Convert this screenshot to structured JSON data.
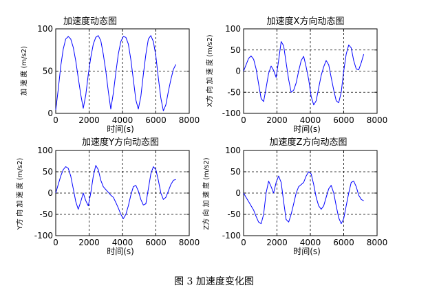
{
  "figure": {
    "caption": "图 3  加速度变化图"
  },
  "chart_data": [
    {
      "type": "line",
      "title": "加速度动态图",
      "xlabel": "时间(s)",
      "ylabel": "加 速 度  (m/s2)",
      "xlim": [
        0,
        8000
      ],
      "ylim": [
        0,
        100
      ],
      "xticks": [
        0,
        2000,
        4000,
        6000,
        8000
      ],
      "yticks": [
        0,
        50,
        100
      ],
      "grid": true,
      "color": "#0000ff",
      "series": [
        {
          "name": "加速度",
          "x": [
            0,
            150,
            300,
            450,
            600,
            750,
            900,
            1050,
            1200,
            1350,
            1500,
            1650,
            1800,
            1950,
            2100,
            2250,
            2400,
            2550,
            2700,
            2850,
            3000,
            3150,
            3300,
            3450,
            3600,
            3750,
            3900,
            4050,
            4200,
            4350,
            4500,
            4650,
            4800,
            4950,
            5100,
            5250,
            5400,
            5550,
            5700,
            5850,
            6000,
            6150,
            6300,
            6450,
            6600,
            6750,
            6900,
            7050,
            7200
          ],
          "y": [
            4,
            28,
            56,
            76,
            88,
            91,
            88,
            78,
            62,
            42,
            22,
            6,
            22,
            46,
            66,
            82,
            90,
            92,
            86,
            70,
            50,
            26,
            5,
            24,
            48,
            70,
            85,
            91,
            90,
            82,
            64,
            40,
            16,
            5,
            20,
            46,
            70,
            88,
            92,
            85,
            68,
            42,
            18,
            3,
            10,
            26,
            40,
            52,
            58
          ]
        }
      ]
    },
    {
      "type": "line",
      "title": "加速度X方向动态图",
      "xlabel": "时间(s)",
      "ylabel": "X方 向 加 速 度  (m/s2)",
      "xlim": [
        0,
        8000
      ],
      "ylim": [
        -100,
        100
      ],
      "xticks": [
        0,
        2000,
        4000,
        6000,
        8000
      ],
      "yticks": [
        -100,
        -50,
        0,
        50,
        100
      ],
      "grid": true,
      "color": "#0000ff",
      "series": [
        {
          "name": "X",
          "x": [
            0,
            150,
            300,
            450,
            600,
            750,
            900,
            1050,
            1200,
            1350,
            1500,
            1650,
            1800,
            1950,
            2100,
            2250,
            2400,
            2550,
            2700,
            2850,
            3000,
            3150,
            3300,
            3450,
            3600,
            3750,
            3900,
            4050,
            4200,
            4350,
            4500,
            4650,
            4800,
            4950,
            5100,
            5250,
            5400,
            5550,
            5700,
            5850,
            6000,
            6150,
            6300,
            6450,
            6600,
            6750,
            6900,
            7050,
            7200
          ],
          "y": [
            0,
            15,
            30,
            36,
            28,
            5,
            -30,
            -65,
            -72,
            -40,
            -5,
            12,
            2,
            -15,
            25,
            70,
            60,
            20,
            -20,
            -50,
            -45,
            -28,
            0,
            25,
            35,
            10,
            -20,
            -60,
            -80,
            -70,
            -40,
            -10,
            10,
            25,
            15,
            -15,
            -45,
            -70,
            -75,
            -50,
            0,
            40,
            62,
            55,
            25,
            5,
            3,
            20,
            40
          ]
        }
      ]
    },
    {
      "type": "line",
      "title": "加速度Y方向动态图",
      "xlabel": "时间(s)",
      "ylabel": "Y方 向 加 速 度  (m/s2)",
      "xlim": [
        0,
        8000
      ],
      "ylim": [
        -100,
        100
      ],
      "xticks": [
        0,
        2000,
        4000,
        6000,
        8000
      ],
      "yticks": [
        -100,
        -50,
        0,
        50,
        100
      ],
      "grid": true,
      "color": "#0000ff",
      "series": [
        {
          "name": "Y",
          "x": [
            0,
            150,
            300,
            450,
            600,
            750,
            900,
            1050,
            1200,
            1350,
            1500,
            1650,
            1800,
            1950,
            2100,
            2250,
            2400,
            2550,
            2700,
            2850,
            3000,
            3150,
            3300,
            3450,
            3600,
            3750,
            3900,
            4050,
            4200,
            4350,
            4500,
            4650,
            4800,
            4950,
            5100,
            5250,
            5400,
            5550,
            5700,
            5850,
            6000,
            6150,
            6300,
            6450,
            6600,
            6750,
            6900,
            7050,
            7200
          ],
          "y": [
            0,
            20,
            40,
            55,
            62,
            58,
            40,
            10,
            -20,
            -38,
            -20,
            0,
            -18,
            -30,
            0,
            40,
            65,
            55,
            30,
            15,
            8,
            2,
            -5,
            -10,
            -22,
            -35,
            -50,
            -60,
            -50,
            -30,
            -5,
            15,
            18,
            5,
            -15,
            -28,
            -25,
            10,
            45,
            62,
            55,
            30,
            0,
            -15,
            -10,
            5,
            20,
            30,
            32
          ]
        }
      ]
    },
    {
      "type": "line",
      "title": "加速度Z方向动态图",
      "xlabel": "时间(s)",
      "ylabel": "Z方 向 加 速 度  (m/s2)",
      "xlim": [
        0,
        8000
      ],
      "ylim": [
        -100,
        100
      ],
      "xticks": [
        0,
        2000,
        4000,
        6000,
        8000
      ],
      "yticks": [
        -100,
        -50,
        0,
        50,
        100
      ],
      "grid": true,
      "color": "#0000ff",
      "series": [
        {
          "name": "Z",
          "x": [
            0,
            150,
            300,
            450,
            600,
            750,
            900,
            1050,
            1200,
            1350,
            1500,
            1650,
            1800,
            1950,
            2100,
            2250,
            2400,
            2550,
            2700,
            2850,
            3000,
            3150,
            3300,
            3450,
            3600,
            3750,
            3900,
            4050,
            4200,
            4350,
            4500,
            4650,
            4800,
            4950,
            5100,
            5250,
            5400,
            5550,
            5700,
            5850,
            6000,
            6150,
            6300,
            6450,
            6600,
            6750,
            6900,
            7050,
            7200
          ],
          "y": [
            0,
            -10,
            -20,
            -30,
            -40,
            -55,
            -68,
            -72,
            -50,
            0,
            28,
            15,
            0,
            25,
            40,
            25,
            -20,
            -62,
            -68,
            -50,
            -25,
            0,
            15,
            20,
            25,
            40,
            50,
            45,
            20,
            -10,
            -30,
            -38,
            -30,
            -10,
            10,
            18,
            0,
            -30,
            -58,
            -72,
            -60,
            -30,
            0,
            25,
            28,
            15,
            -5,
            -15,
            -18
          ]
        }
      ]
    }
  ]
}
